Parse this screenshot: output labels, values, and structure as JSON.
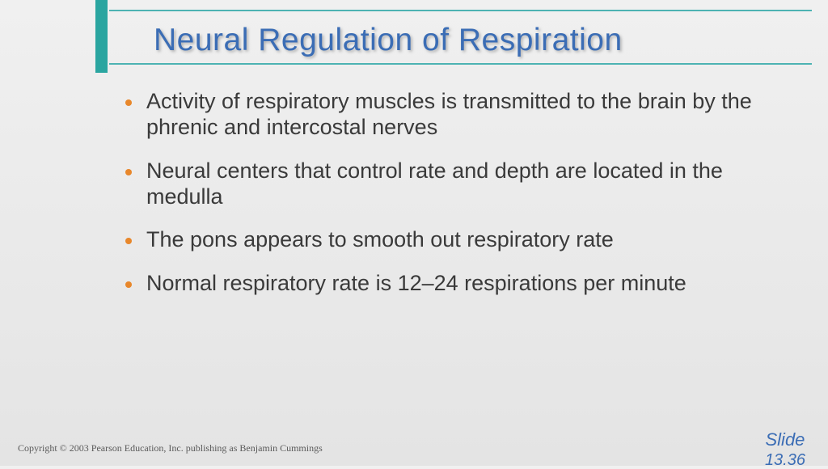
{
  "title": "Neural Regulation of Respiration",
  "bullets": [
    "Activity of respiratory muscles is transmitted to the brain by the phrenic and intercostal nerves",
    "Neural centers that control rate and depth are located in the medulla",
    "The pons appears to smooth out respiratory rate",
    "Normal respiratory rate is 12–24 respirations per minute"
  ],
  "footer": {
    "copyright": "Copyright © 2003 Pearson Education, Inc. publishing as Benjamin Cummings",
    "slide_label": "Slide",
    "slide_number": "13.36"
  },
  "colors": {
    "title_color": "#3b6db5",
    "accent_teal": "#2aa5a0",
    "bullet_orange": "#e8872b",
    "body_text": "#3a3a3a",
    "bg_top": "#f0f0f0",
    "bg_bottom": "#e4e4e4"
  },
  "typography": {
    "title_fontsize": 39,
    "body_fontsize": 27,
    "footer_fontsize": 12,
    "slide_label_fontsize": 22
  }
}
